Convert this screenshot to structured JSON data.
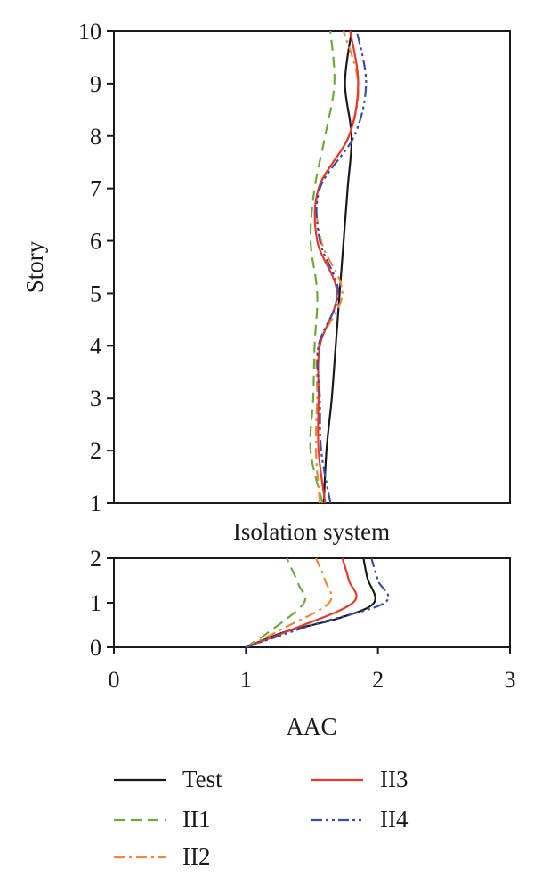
{
  "legend": [
    {
      "label": "Test",
      "color": "#1a1a1a",
      "dash": "solid"
    },
    {
      "label": "II3",
      "color": "#e8392a",
      "dash": "solid"
    },
    {
      "label": "II1",
      "color": "#6aab3c",
      "dash": "dashed"
    },
    {
      "label": "II4",
      "color": "#3a4fa6",
      "dash": "dash-dot-dot"
    },
    {
      "label": "II2",
      "color": "#f0873a",
      "dash": "dash-dot"
    }
  ],
  "chart_data": [
    {
      "type": "line",
      "panel": "superstructure",
      "xlabel": "",
      "ylabel": "Story",
      "xlim": [
        0,
        3
      ],
      "ylim": [
        1,
        10
      ],
      "yticks": [
        "1",
        "2",
        "3",
        "4",
        "5",
        "6",
        "7",
        "8",
        "9",
        "10"
      ],
      "grid": false,
      "series": [
        {
          "name": "Test",
          "color": "#1a1a1a",
          "dash": "solid",
          "points": [
            [
              1.59,
              1.0
            ],
            [
              1.61,
              2.0
            ],
            [
              1.65,
              3.0
            ],
            [
              1.68,
              4.0
            ],
            [
              1.71,
              5.0
            ],
            [
              1.74,
              6.0
            ],
            [
              1.77,
              7.0
            ],
            [
              1.8,
              8.0
            ],
            [
              1.75,
              9.0
            ],
            [
              1.8,
              10.0
            ]
          ]
        },
        {
          "name": "II1",
          "color": "#6aab3c",
          "dash": "dashed",
          "points": [
            [
              1.58,
              1.0
            ],
            [
              1.49,
              2.0
            ],
            [
              1.51,
              3.0
            ],
            [
              1.52,
              4.0
            ],
            [
              1.54,
              5.0
            ],
            [
              1.49,
              6.0
            ],
            [
              1.52,
              7.0
            ],
            [
              1.6,
              8.0
            ],
            [
              1.67,
              9.0
            ],
            [
              1.64,
              10.0
            ]
          ]
        },
        {
          "name": "II2",
          "color": "#f0873a",
          "dash": "dash-dot",
          "points": [
            [
              1.56,
              1.0
            ],
            [
              1.53,
              2.0
            ],
            [
              1.54,
              3.0
            ],
            [
              1.55,
              4.0
            ],
            [
              1.73,
              5.0
            ],
            [
              1.57,
              6.0
            ],
            [
              1.55,
              7.0
            ],
            [
              1.78,
              8.0
            ],
            [
              1.85,
              9.0
            ],
            [
              1.74,
              10.0
            ]
          ]
        },
        {
          "name": "II3",
          "color": "#e8392a",
          "dash": "solid",
          "points": [
            [
              1.6,
              1.0
            ],
            [
              1.55,
              2.0
            ],
            [
              1.55,
              3.0
            ],
            [
              1.56,
              4.0
            ],
            [
              1.69,
              5.0
            ],
            [
              1.54,
              6.0
            ],
            [
              1.55,
              7.0
            ],
            [
              1.78,
              8.0
            ],
            [
              1.85,
              9.0
            ],
            [
              1.79,
              10.0
            ]
          ]
        },
        {
          "name": "II4",
          "color": "#3a4fa6",
          "dash": "dash-dot-dot",
          "points": [
            [
              1.64,
              1.0
            ],
            [
              1.57,
              2.0
            ],
            [
              1.56,
              3.0
            ],
            [
              1.55,
              4.0
            ],
            [
              1.7,
              5.0
            ],
            [
              1.56,
              6.0
            ],
            [
              1.56,
              7.0
            ],
            [
              1.82,
              8.0
            ],
            [
              1.91,
              9.0
            ],
            [
              1.84,
              10.0
            ]
          ]
        }
      ]
    },
    {
      "type": "line",
      "panel": "isolation",
      "title": "Isolation system",
      "xlabel": "AAC",
      "ylabel": "",
      "xlim": [
        0,
        3
      ],
      "ylim": [
        0,
        2
      ],
      "xticks": [
        "0",
        "1",
        "2",
        "3"
      ],
      "yticks": [
        "0",
        "1",
        "2"
      ],
      "grid": false,
      "series": [
        {
          "name": "Test",
          "color": "#1a1a1a",
          "dash": "solid",
          "points": [
            [
              1.0,
              0.0
            ],
            [
              1.3,
              0.35
            ],
            [
              1.7,
              0.65
            ],
            [
              1.97,
              1.0
            ],
            [
              1.92,
              1.55
            ],
            [
              1.89,
              2.0
            ]
          ]
        },
        {
          "name": "II1",
          "color": "#6aab3c",
          "dash": "dashed",
          "points": [
            [
              1.0,
              0.0
            ],
            [
              1.2,
              0.4
            ],
            [
              1.44,
              1.0
            ],
            [
              1.4,
              1.4
            ],
            [
              1.31,
              2.0
            ]
          ]
        },
        {
          "name": "II2",
          "color": "#f0873a",
          "dash": "dash-dot",
          "points": [
            [
              1.0,
              0.0
            ],
            [
              1.3,
              0.45
            ],
            [
              1.63,
              1.0
            ],
            [
              1.6,
              1.5
            ],
            [
              1.53,
              2.0
            ]
          ]
        },
        {
          "name": "II3",
          "color": "#e8392a",
          "dash": "solid",
          "points": [
            [
              1.0,
              0.0
            ],
            [
              1.35,
              0.4
            ],
            [
              1.81,
              1.0
            ],
            [
              1.78,
              1.5
            ],
            [
              1.73,
              2.0
            ]
          ]
        },
        {
          "name": "II4",
          "color": "#3a4fa6",
          "dash": "dash-dot-dot",
          "points": [
            [
              1.0,
              0.0
            ],
            [
              1.5,
              0.5
            ],
            [
              2.05,
              1.0
            ],
            [
              2.0,
              1.5
            ],
            [
              1.95,
              2.0
            ]
          ]
        }
      ]
    }
  ]
}
